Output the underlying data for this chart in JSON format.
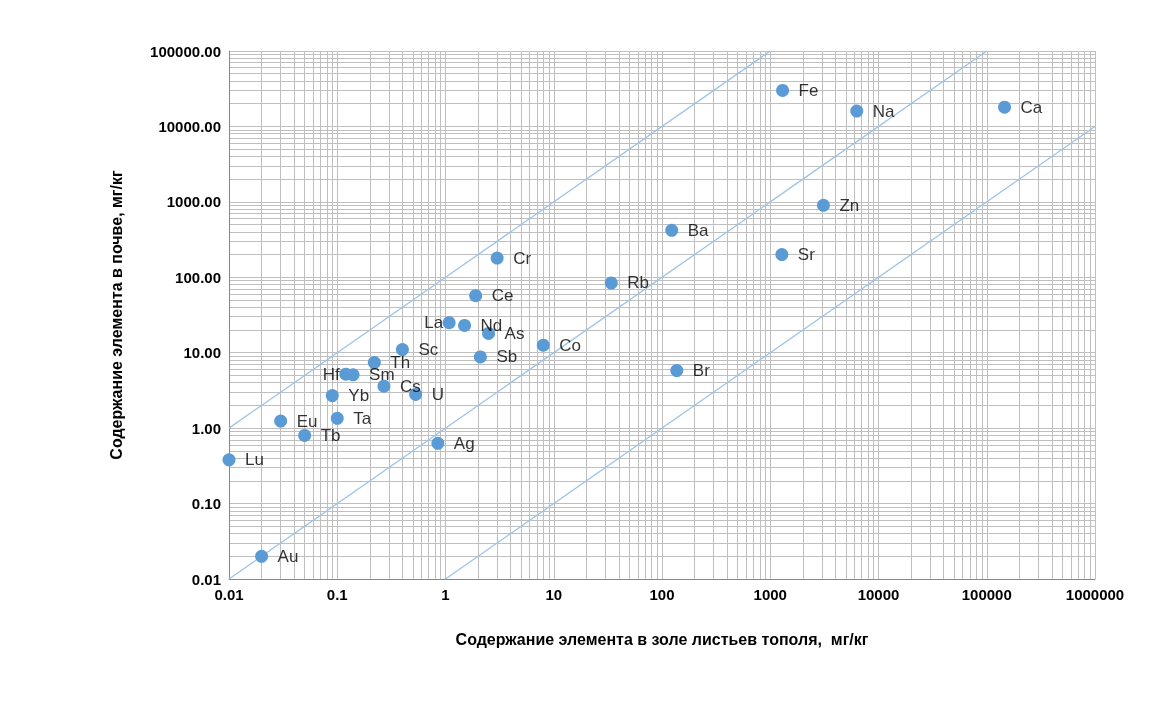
{
  "chart_data": {
    "type": "scatter",
    "xlabel": "Содержание элемента в золе листьев тополя,  мг/кг",
    "ylabel": "Содержание элемента в почве, мг/кг",
    "log": "xy",
    "grid": true,
    "marker": "circle",
    "xlim": [
      0.01,
      1000000
    ],
    "xticks": [
      0.01,
      0.1,
      1,
      10,
      100,
      1000,
      10000,
      100000,
      1000000
    ],
    "ylim": [
      0.01,
      100000
    ],
    "yticks": [
      {
        "value": 0.01,
        "label": "0.01"
      },
      {
        "value": 0.1,
        "label": "0.10"
      },
      {
        "value": 1,
        "label": "1.00"
      },
      {
        "value": 10,
        "label": "10.00"
      },
      {
        "value": 100,
        "label": "100.00"
      },
      {
        "value": 1000,
        "label": "1000.00"
      },
      {
        "value": 10000,
        "label": "10000.00"
      },
      {
        "value": 100000,
        "label": "100000.00"
      }
    ],
    "series": [
      {
        "type": "line",
        "marker": "none",
        "color": "#9dc3e6",
        "x": [
          0.01,
          1000
        ],
        "values": [
          1,
          100000
        ]
      },
      {
        "type": "line",
        "marker": "none",
        "color": "#9dc3e6",
        "x": [
          0.01,
          100000
        ],
        "values": [
          0.01,
          100000
        ]
      },
      {
        "type": "line",
        "marker": "none",
        "color": "#9dc3e6",
        "x": [
          1,
          1000000
        ],
        "values": [
          0.01,
          10000
        ]
      },
      {
        "color": "#5b9bd5",
        "x": [
          1300,
          6300,
          146000,
          3100,
          123,
          1280,
          34,
          137,
          3.0,
          1.9,
          1.08,
          1.5,
          2.5,
          8,
          2.1,
          0.4,
          0.22,
          0.12,
          0.14,
          0.27,
          0.53,
          0.09,
          0.1,
          0.03,
          0.05,
          0.01,
          0.85,
          0.02
        ],
        "values": [
          30000,
          16000,
          18000,
          900,
          420,
          200,
          84,
          5.8,
          180,
          57,
          25,
          23,
          18,
          12.6,
          8.8,
          11,
          7.4,
          5.2,
          5.1,
          3.6,
          2.8,
          2.7,
          1.35,
          1.24,
          0.8,
          0.38,
          0.63,
          0.02
        ]
      }
    ],
    "annotations": [
      {
        "text": "Fe",
        "x": 1300,
        "y": 30000
      },
      {
        "text": "Na",
        "x": 6300,
        "y": 16000
      },
      {
        "text": "Ca",
        "x": 146000,
        "y": 18000
      },
      {
        "text": "Zn",
        "x": 3100,
        "y": 900
      },
      {
        "text": "Ba",
        "x": 123,
        "y": 420
      },
      {
        "text": "Sr",
        "x": 1280,
        "y": 200
      },
      {
        "text": "Rb",
        "x": 34,
        "y": 84
      },
      {
        "text": "Br",
        "x": 137,
        "y": 5.8
      },
      {
        "text": "Cr",
        "x": 3.0,
        "y": 180
      },
      {
        "text": "Ce",
        "x": 1.9,
        "y": 57
      },
      {
        "text": "La",
        "x": 1.08,
        "y": 25
      },
      {
        "text": "Nd",
        "x": 1.5,
        "y": 23
      },
      {
        "text": "As",
        "x": 2.5,
        "y": 18
      },
      {
        "text": "Co",
        "x": 8,
        "y": 12.6
      },
      {
        "text": "Sb",
        "x": 2.1,
        "y": 8.8
      },
      {
        "text": "Sc",
        "x": 0.4,
        "y": 11
      },
      {
        "text": "Th",
        "x": 0.22,
        "y": 7.4
      },
      {
        "text": "Hf",
        "x": 0.12,
        "y": 5.2
      },
      {
        "text": "Sm",
        "x": 0.14,
        "y": 5.1
      },
      {
        "text": "Cs",
        "x": 0.27,
        "y": 3.6
      },
      {
        "text": "U",
        "x": 0.53,
        "y": 2.8
      },
      {
        "text": "Yb",
        "x": 0.09,
        "y": 2.7
      },
      {
        "text": "Ta",
        "x": 0.1,
        "y": 1.35
      },
      {
        "text": "Eu",
        "x": 0.03,
        "y": 1.24
      },
      {
        "text": "Tb",
        "x": 0.05,
        "y": 0.8
      },
      {
        "text": "Lu",
        "x": 0.01,
        "y": 0.38
      },
      {
        "text": "Ag",
        "x": 0.85,
        "y": 0.63
      },
      {
        "text": "Au",
        "x": 0.02,
        "y": 0.02
      }
    ]
  }
}
